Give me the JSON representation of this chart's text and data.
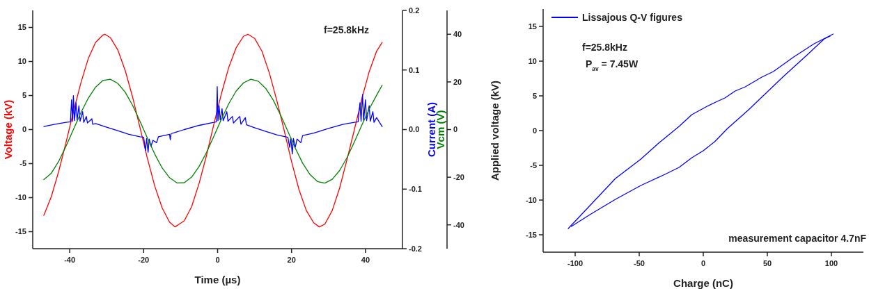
{
  "chart_data": [
    {
      "type": "line",
      "xlabel": "Time (µs)",
      "ylabel": "Voltage (kV)",
      "y2label": "Current (A)",
      "y3label": "Vcm (V)",
      "annotations": [
        "f=25.8kHz"
      ],
      "xlim": [
        -50,
        50
      ],
      "xticks": [
        -40,
        -20,
        0,
        20,
        40
      ],
      "ylim": [
        -17.5,
        17.5
      ],
      "yticks": [
        -15,
        -10,
        -5,
        0,
        5,
        10,
        15
      ],
      "y2lim": [
        -0.2,
        0.2
      ],
      "y2ticks": [
        -0.2,
        -0.1,
        {
          "value": 0,
          "label": "0.0"
        },
        0.1,
        0.2
      ],
      "y3lim": [
        -50,
        50
      ],
      "y3ticks": [
        -40,
        -20,
        0,
        20,
        40
      ],
      "series": [
        {
          "color": "#ff0000",
          "x": [
            -47,
            -45,
            -43,
            -41,
            -39,
            -37,
            -35,
            -33,
            -31,
            -30.5,
            -29,
            -27,
            -25,
            -23,
            -21,
            -19,
            -17,
            -15,
            -13,
            -11.5,
            -9,
            -7,
            -5,
            -3,
            -1,
            1,
            3,
            5,
            7,
            8.2,
            10,
            12,
            14,
            16,
            18,
            20,
            22,
            24,
            26,
            27.5,
            29,
            31,
            33,
            35,
            37,
            39,
            41,
            43,
            44.5
          ],
          "values": [
            -12.6,
            -9.9,
            -6.2,
            -1.9,
            2.6,
            6.8,
            10.4,
            12.8,
            13.9,
            14.0,
            13.5,
            11.7,
            8.7,
            4.8,
            0.3,
            -4.2,
            -8.3,
            -11.5,
            -13.6,
            -14.3,
            -13.4,
            -11.3,
            -7.9,
            -3.8,
            0.8,
            5.2,
            9.1,
            12.0,
            13.7,
            14.0,
            13.4,
            11.5,
            8.3,
            4.3,
            -0.1,
            -4.7,
            -8.8,
            -11.9,
            -13.7,
            -14.3,
            -13.9,
            -11.9,
            -8.6,
            -4.4,
            0.0,
            4.5,
            8.5,
            11.5,
            12.8
          ]
        },
        {
          "color": "#0000ff",
          "axis": "y2",
          "x": [
            -47,
            -44,
            -41,
            -39.8,
            -39.5,
            -39.2,
            -39,
            -38.7,
            -38.3,
            -38,
            -37.5,
            -37.2,
            -36.5,
            -36.2,
            -35.5,
            -35.2,
            -34,
            -33.8,
            -33,
            -30,
            -27,
            -24,
            -21,
            -20,
            -19.5,
            -19.2,
            -18.8,
            -18.5,
            -18,
            -17.5,
            -16.5,
            -16,
            -13,
            -12.8,
            -12.6,
            -9,
            -5,
            -1,
            -0.3,
            -0.1,
            0.1,
            0.4,
            0.7,
            1.2,
            1.5,
            2.5,
            2.8,
            4,
            4.3,
            6,
            6.3,
            7.5,
            7.8,
            10,
            13,
            16,
            19,
            19.5,
            19.8,
            20.2,
            20.5,
            21,
            21.5,
            22.5,
            23,
            26,
            30,
            34,
            37,
            38,
            38.5,
            38.8,
            39.2,
            39.5,
            40,
            40.3,
            41,
            41.3,
            42,
            42.3,
            43,
            44.5
          ],
          "values": [
            0.005,
            0.009,
            0.012,
            0.013,
            0.05,
            0.014,
            0.057,
            0.015,
            0.045,
            0.016,
            0.04,
            0.014,
            0.03,
            0.012,
            0.022,
            0.011,
            0.018,
            0.009,
            0.01,
            0.004,
            -0.002,
            -0.008,
            -0.012,
            -0.013,
            -0.035,
            -0.015,
            -0.038,
            -0.016,
            -0.028,
            -0.018,
            -0.022,
            -0.012,
            -0.008,
            -0.017,
            -0.007,
            0,
            0.007,
            0.012,
            0.013,
            0.072,
            0.015,
            0.04,
            0.016,
            0.035,
            0.015,
            0.03,
            0.014,
            0.022,
            0.011,
            0.022,
            0.009,
            0.02,
            0.008,
            0.003,
            -0.003,
            -0.009,
            -0.013,
            -0.03,
            -0.014,
            -0.041,
            -0.015,
            -0.03,
            -0.016,
            -0.022,
            -0.01,
            -0.006,
            0.002,
            0.009,
            0.012,
            0.013,
            0.045,
            0.014,
            0.059,
            0.015,
            0.05,
            0.015,
            0.04,
            0.014,
            0.03,
            0.012,
            0.02,
            0.005
          ]
        },
        {
          "color": "#008000",
          "axis": "y3",
          "x": [
            -47,
            -45,
            -43,
            -41,
            -39,
            -37,
            -35,
            -33,
            -31,
            -29,
            -27,
            -25,
            -23,
            -21,
            -19,
            -17,
            -15,
            -13,
            -11,
            -9,
            -7,
            -5,
            -3,
            -1,
            1,
            3,
            5,
            7,
            9,
            11,
            13,
            15,
            17,
            19,
            21,
            23,
            25,
            27,
            29,
            31,
            33,
            35,
            37,
            39,
            41,
            43,
            44.5
          ],
          "values": [
            -21.0,
            -18.4,
            -13.4,
            -7.0,
            0.0,
            7.0,
            13.1,
            17.8,
            20.6,
            21.1,
            19.4,
            15.7,
            10.2,
            3.5,
            -3.5,
            -10.3,
            -16.1,
            -20.2,
            -22.4,
            -22.3,
            -19.9,
            -15.5,
            -9.6,
            -2.8,
            4.2,
            10.8,
            16.1,
            19.6,
            21.1,
            20.3,
            17.3,
            12.5,
            6.2,
            -0.7,
            -7.8,
            -14.1,
            -18.9,
            -21.8,
            -22.5,
            -20.9,
            -17.2,
            -11.8,
            -5.2,
            1.8,
            8.6,
            14.4,
            18.6
          ]
        }
      ]
    },
    {
      "type": "line",
      "xlabel": "Charge (nC)",
      "ylabel": "Applied voltage (kV)",
      "legend": "top left",
      "annotations": [
        "f=25.8kHz",
        "P$_{av}$ = 7.45W",
        "measurement capacitor 4.7nF"
      ],
      "xlim": [
        -125,
        125
      ],
      "xticks": [
        -100,
        -50,
        0,
        50,
        100
      ],
      "ylim": [
        -17.5,
        17.5
      ],
      "yticks": [
        -15,
        -10,
        -5,
        0,
        5,
        10,
        15
      ],
      "series": [
        {
          "name": "Lissajous Q-V figures",
          "color": "#0000ff",
          "x": [
            -105.4,
            -88.5,
            -68.6,
            -48.7,
            -34.8,
            -18.9,
            -8.9,
            3,
            10.9,
            16.9,
            24.9,
            32.8,
            45.7,
            54.7,
            70.6,
            86.5,
            101.4
          ],
          "values": [
            -14.1,
            -10.8,
            -6.9,
            -4.1,
            -1.8,
            0.6,
            2.3,
            3.5,
            4.2,
            4.7,
            5.7,
            6.3,
            7.7,
            8.5,
            10.6,
            12.5,
            13.9
          ]
        },
        {
          "color": "#0000ff",
          "x": [
            -103,
            -88.5,
            -68.6,
            -48.7,
            -28.8,
            -18.9,
            -8.9,
            0,
            8.9,
            18.9,
            34.8,
            50.7,
            62.6,
            80.5,
            94.4,
            99
          ],
          "values": [
            -13.8,
            -12.1,
            -9.9,
            -7.9,
            -6.2,
            -5.3,
            -3.9,
            -2.9,
            -1.6,
            0.3,
            2.9,
            5.7,
            7.8,
            10.8,
            13.2,
            13.6
          ]
        }
      ]
    }
  ]
}
